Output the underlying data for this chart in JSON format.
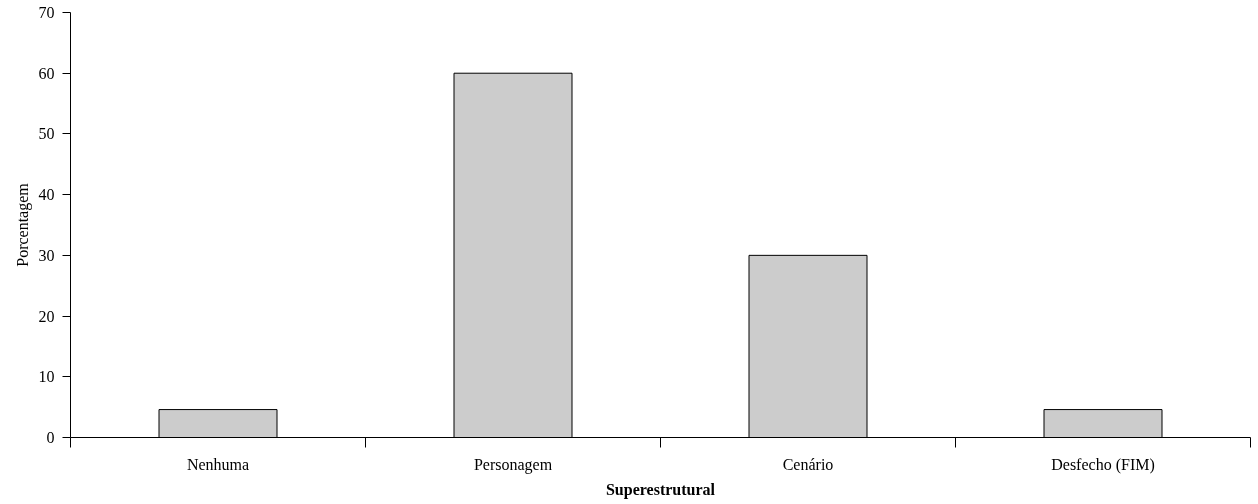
{
  "chart_data": {
    "type": "bar",
    "xlabel": "Superestrutural",
    "ylabel": "Porcentagem",
    "categories": [
      "Nenhuma",
      "Personagem",
      "Cenário",
      "Desfecho (FIM)"
    ],
    "values": [
      4.6,
      60,
      30,
      4.6
    ],
    "color": "#cccccc",
    "ylim": [
      0,
      70
    ],
    "yticks": [
      0,
      10,
      20,
      30,
      40,
      50,
      60,
      70
    ],
    "grid": false
  }
}
